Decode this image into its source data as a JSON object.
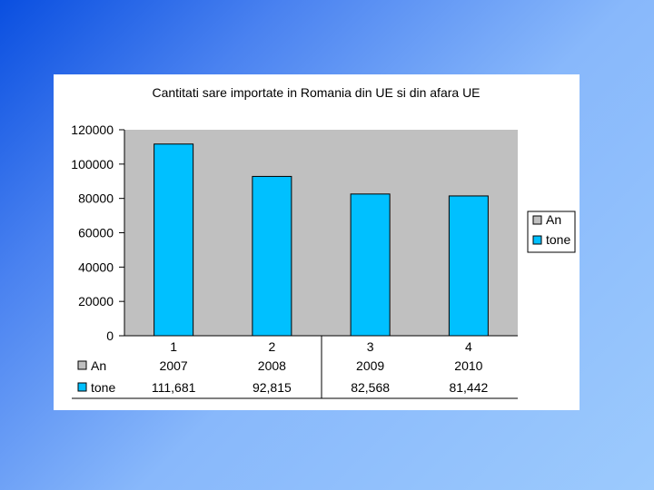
{
  "chart_data": {
    "type": "bar",
    "title": "Cantitati sare importate in Romania din UE si din afara UE",
    "categories": [
      "1",
      "2",
      "3",
      "4"
    ],
    "series": [
      {
        "name": "An",
        "values": [
          2007,
          2008,
          2009,
          2010
        ],
        "color": "#c0c0c0"
      },
      {
        "name": "tone",
        "values": [
          111681,
          92815,
          82568,
          81442
        ],
        "color": "#00c0ff"
      }
    ],
    "table": {
      "rows": [
        {
          "label": "An",
          "cells": [
            "2007",
            "2008",
            "2009",
            "2010"
          ]
        },
        {
          "label": "tone",
          "cells": [
            "111,681",
            "92,815",
            "82,568",
            "81,442"
          ]
        }
      ]
    },
    "ylim": [
      0,
      120000
    ],
    "yticks": [
      "0",
      "20000",
      "40000",
      "60000",
      "80000",
      "100000",
      "120000"
    ],
    "legend_position": "right",
    "plot_background": "#c0c0c0",
    "grid": false
  }
}
